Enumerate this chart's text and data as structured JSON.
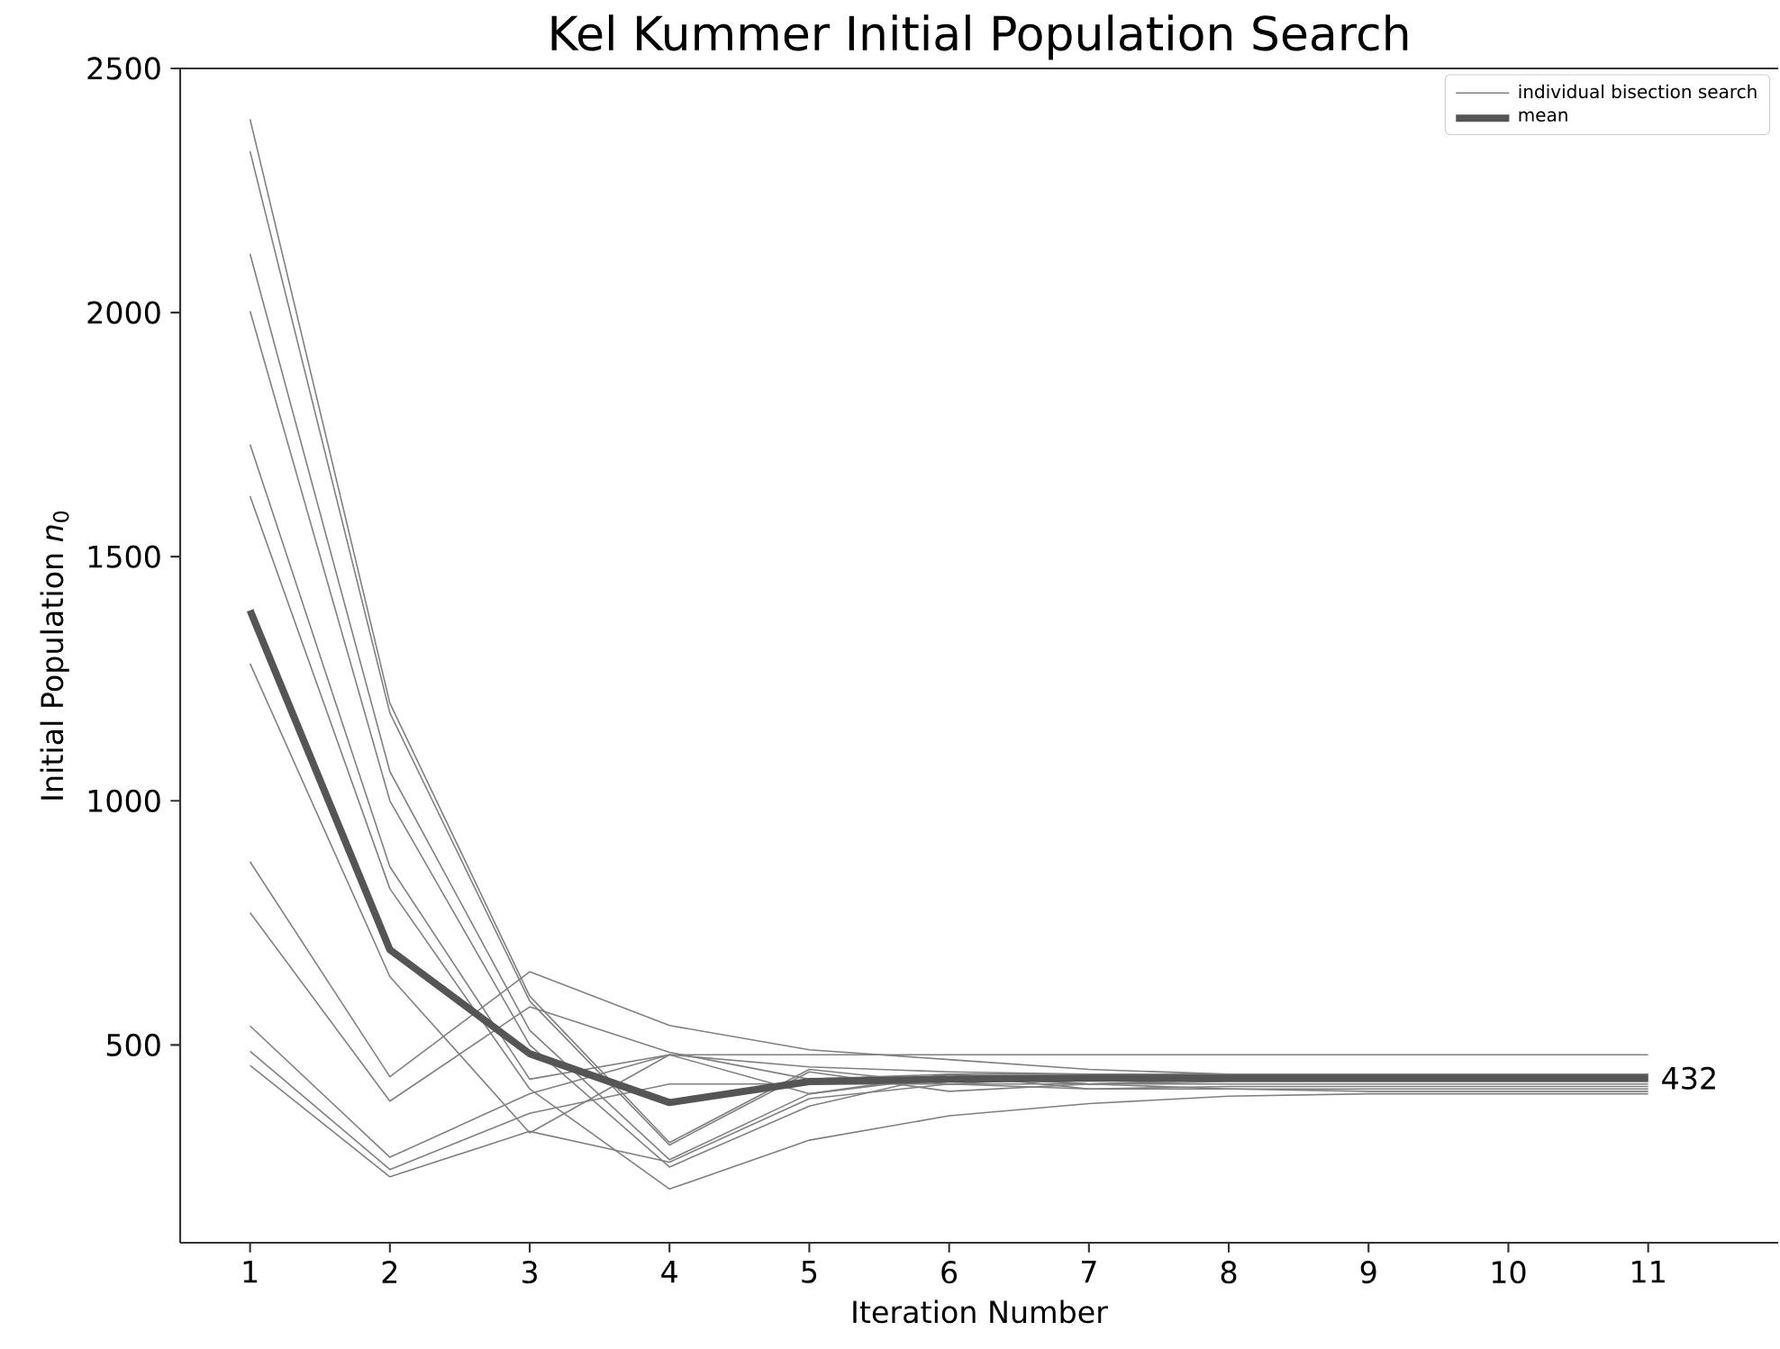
{
  "chart_data": {
    "type": "line",
    "title": "Kel Kummer Initial Population Search",
    "xlabel": "Iteration Number",
    "ylabel": "Initial Population *n*$_{0}$",
    "x": [
      1,
      2,
      3,
      4,
      5,
      6,
      7,
      8,
      9,
      10,
      11
    ],
    "series": [
      {
        "name": "individual bisection search",
        "color": "#808080",
        "values": [
          2396,
          1200,
          600,
          300,
          450,
          420,
          435,
          440,
          440,
          440,
          440
        ]
      },
      {
        "color": "#808080",
        "values": [
          2330,
          1180,
          590,
          295,
          445,
          405,
          420,
          425,
          425,
          425,
          425
        ]
      },
      {
        "color": "#808080",
        "values": [
          2120,
          1060,
          530,
          265,
          400,
          435,
          420,
          430,
          430,
          430,
          430
        ]
      },
      {
        "color": "#808080",
        "values": [
          2003,
          1000,
          500,
          250,
          375,
          440,
          410,
          415,
          415,
          415,
          415
        ]
      },
      {
        "color": "#808080",
        "values": [
          1730,
          865,
          430,
          480,
          455,
          445,
          440,
          440,
          440,
          440,
          440
        ]
      },
      {
        "color": "#808080",
        "values": [
          1624,
          820,
          410,
          205,
          305,
          355,
          380,
          395,
          400,
          400,
          400
        ]
      },
      {
        "color": "#808080",
        "values": [
          1281,
          640,
          320,
          480,
          400,
          440,
          420,
          410,
          405,
          405,
          405
        ]
      },
      {
        "color": "#808080",
        "values": [
          875,
          435,
          650,
          540,
          490,
          470,
          450,
          440,
          435,
          435,
          435
        ]
      },
      {
        "color": "#808080",
        "values": [
          771,
          385,
          578,
          485,
          430,
          440,
          440,
          440,
          440,
          440,
          440
        ]
      },
      {
        "color": "#808080",
        "values": [
          539,
          270,
          400,
          480,
          480,
          480,
          480,
          480,
          480,
          480,
          480
        ]
      },
      {
        "color": "#808080",
        "values": [
          487,
          245,
          360,
          420,
          420,
          420,
          420,
          420,
          420,
          420,
          420
        ]
      },
      {
        "color": "#808080",
        "values": [
          458,
          230,
          323,
          260,
          390,
          420,
          410,
          410,
          410,
          410,
          410
        ]
      },
      {
        "name": "mean",
        "color": "#555555",
        "values": [
          1390,
          695,
          482,
          382,
          425,
          430,
          432,
          432,
          432,
          432,
          432
        ]
      }
    ],
    "annotations": [
      {
        "text": "432",
        "x": 11,
        "y": 432
      }
    ],
    "xlim": [
      0.5,
      11.93
    ],
    "xticks": [
      1,
      2,
      3,
      4,
      5,
      6,
      7,
      8,
      9,
      10,
      11
    ],
    "ylim": [
      95,
      2500
    ],
    "yticks": [
      500,
      1000,
      1500,
      2000,
      2500
    ],
    "grid": false,
    "legend": "top right",
    "marker": "none",
    "line_style": "solid"
  }
}
